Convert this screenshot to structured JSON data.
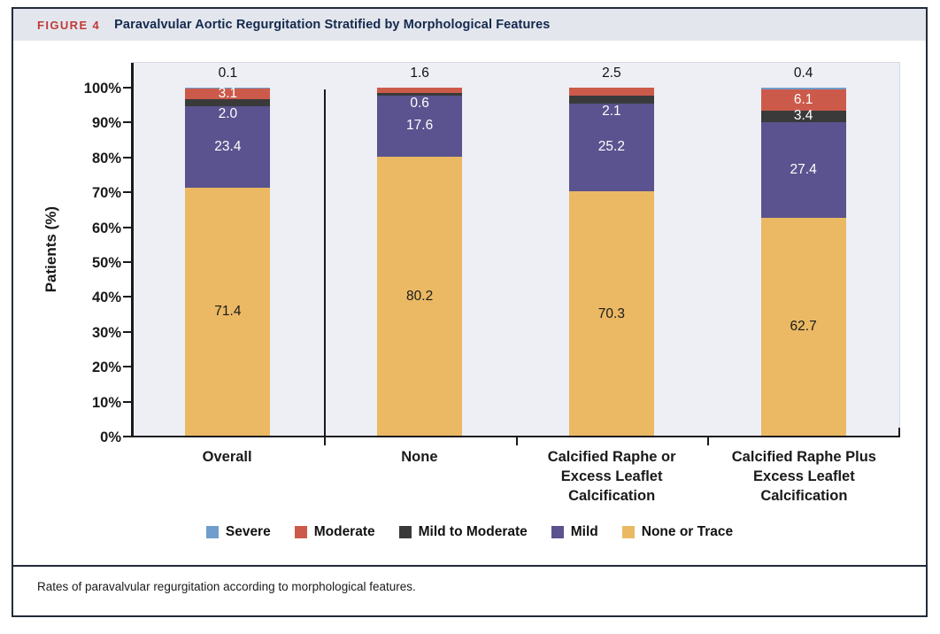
{
  "figure": {
    "label": "FIGURE 4",
    "title": "Paravalvular Aortic Regurgitation Stratified by Morphological Features",
    "caption": "Rates of paravalvular regurgitation according to morphological features.",
    "label_color": "#bf3a37",
    "title_color": "#15294d",
    "header_background": "#e3e7ed",
    "border_color": "#232b39"
  },
  "chart_data": {
    "type": "stacked-bar",
    "title": "Paravalvular Aortic Regurgitation Stratified by Morphological Features",
    "ylabel": "Patients (%)",
    "ylim": [
      0,
      100
    ],
    "ytick_step": 10,
    "ytick_suffix": "%",
    "grid": false,
    "plot_background": "#edeff4",
    "categories": [
      "Overall",
      "None",
      "Calcified Raphe or\nExcess Leaflet\nCalcification",
      "Calcified Raphe Plus\nExcess Leaflet\nCalcification"
    ],
    "stack_order_note": "series listed bottom-to-top of stack",
    "series": [
      {
        "name": "None or Trace",
        "color": "#ebb964",
        "text_color": "#1b1b1b",
        "values": [
          71.4,
          80.2,
          70.3,
          62.7
        ],
        "label_placement": [
          "inside",
          "inside",
          "inside",
          "inside"
        ]
      },
      {
        "name": "Mild",
        "color": "#5a538f",
        "text_color": "#ffffff",
        "values": [
          23.4,
          17.6,
          25.2,
          27.4
        ],
        "label_placement": [
          "inside",
          "inside",
          "inside",
          "inside"
        ]
      },
      {
        "name": "Mild to Moderate",
        "color": "#3a3a3b",
        "text_color": "#ffffff",
        "values": [
          2.0,
          0.6,
          2.1,
          3.4
        ],
        "label_placement": [
          "inside",
          "inside",
          "inside",
          "inside"
        ]
      },
      {
        "name": "Moderate",
        "color": "#cc5a4a",
        "text_color": "#ffffff",
        "values": [
          3.1,
          1.6,
          2.5,
          6.1
        ],
        "label_placement": [
          "inside",
          "above",
          "above",
          "inside"
        ]
      },
      {
        "name": "Severe",
        "color": "#6f9ecd",
        "text_color": "#ffffff",
        "values": [
          0.1,
          0.0,
          0.0,
          0.4
        ],
        "label_placement": [
          "above",
          "none",
          "none",
          "above"
        ]
      }
    ],
    "legend_position": "bottom",
    "legend_order": [
      "Severe",
      "Moderate",
      "Mild to Moderate",
      "Mild",
      "None or Trace"
    ]
  }
}
